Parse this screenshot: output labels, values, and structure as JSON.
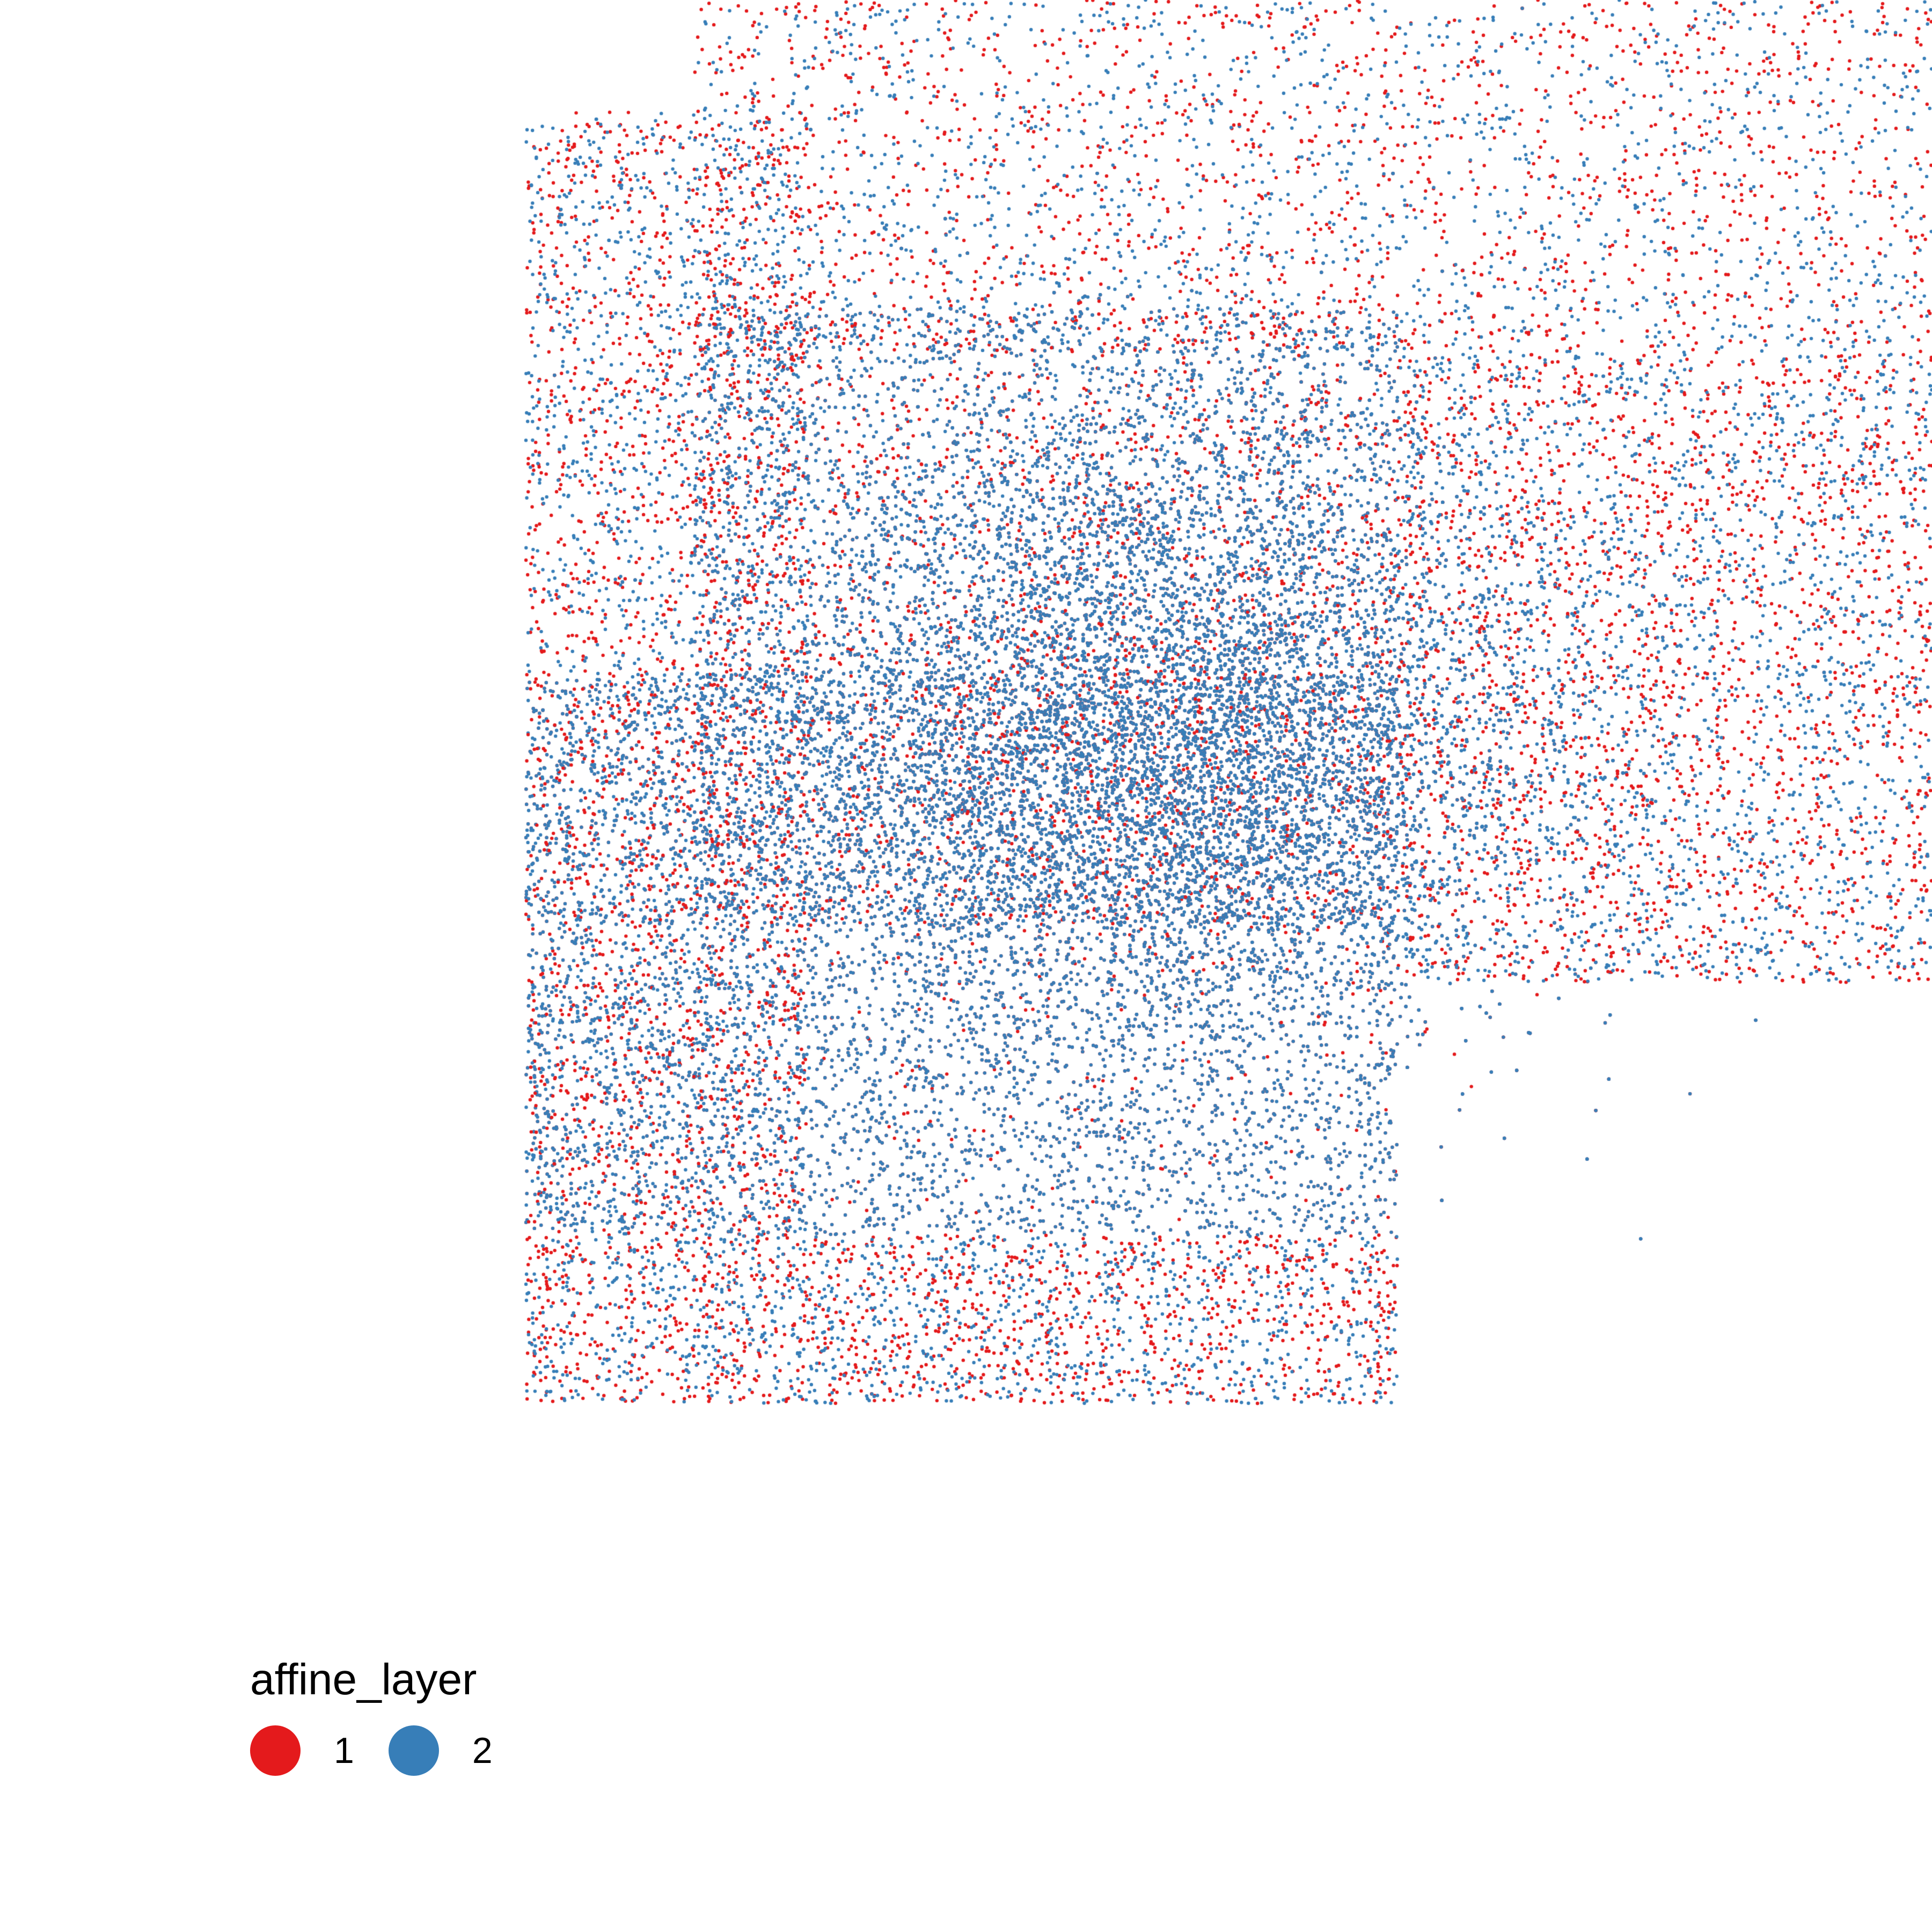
{
  "chart_data": {
    "type": "scatter",
    "title": "",
    "xlabel": "",
    "ylabel": "",
    "xlim": [
      0,
      1
    ],
    "ylim": [
      0,
      1
    ],
    "axes_visible": false,
    "grid": false,
    "legend_placement": "bottom-left",
    "legend": {
      "title": "affine_layer",
      "entries": [
        {
          "label": "1",
          "color": "#E41A1C"
        },
        {
          "label": "2",
          "color": "#377EB8"
        }
      ]
    },
    "series": [
      {
        "name": "1",
        "color": "#E41A1C",
        "clusters": [
          {
            "kind": "dense",
            "center": [
              0.46,
              0.48
            ],
            "spread": [
              0.13,
              0.12
            ],
            "count": 9000
          },
          {
            "kind": "rect",
            "x": [
              0.0,
              0.62
            ],
            "y": [
              0.12,
              0.52
            ],
            "count": 5000
          },
          {
            "kind": "rect",
            "x": [
              0.12,
              0.62
            ],
            "y": [
              0.34,
              0.78
            ],
            "count": 4000
          },
          {
            "kind": "rect",
            "x": [
              0.62,
              1.0
            ],
            "y": [
              0.3,
              0.75
            ],
            "count": 2000
          },
          {
            "kind": "rect",
            "x": [
              0.0,
              0.2
            ],
            "y": [
              0.12,
              0.92
            ],
            "count": 1800
          },
          {
            "kind": "rect",
            "x": [
              0.12,
              1.0
            ],
            "y": [
              0.75,
              1.0
            ],
            "count": 1500
          },
          {
            "kind": "rect",
            "x": [
              0.0,
              0.62
            ],
            "y": [
              0.0,
              0.12
            ],
            "count": 1200
          }
        ]
      },
      {
        "name": "2",
        "color": "#377EB8",
        "clusters": [
          {
            "kind": "dense",
            "center": [
              0.46,
              0.48
            ],
            "spread": [
              0.13,
              0.12
            ],
            "count": 9000
          },
          {
            "kind": "rect",
            "x": [
              0.0,
              0.62
            ],
            "y": [
              0.12,
              0.52
            ],
            "count": 5000
          },
          {
            "kind": "rect",
            "x": [
              0.12,
              0.62
            ],
            "y": [
              0.34,
              0.78
            ],
            "count": 4000
          },
          {
            "kind": "rect",
            "x": [
              0.62,
              1.0
            ],
            "y": [
              0.3,
              0.75
            ],
            "count": 2000
          },
          {
            "kind": "rect",
            "x": [
              0.0,
              0.2
            ],
            "y": [
              0.12,
              0.92
            ],
            "count": 1800
          },
          {
            "kind": "rect",
            "x": [
              0.12,
              1.0
            ],
            "y": [
              0.75,
              1.0
            ],
            "count": 1500
          },
          {
            "kind": "rect",
            "x": [
              0.0,
              0.62
            ],
            "y": [
              0.0,
              0.12
            ],
            "count": 1200
          }
        ]
      }
    ]
  }
}
